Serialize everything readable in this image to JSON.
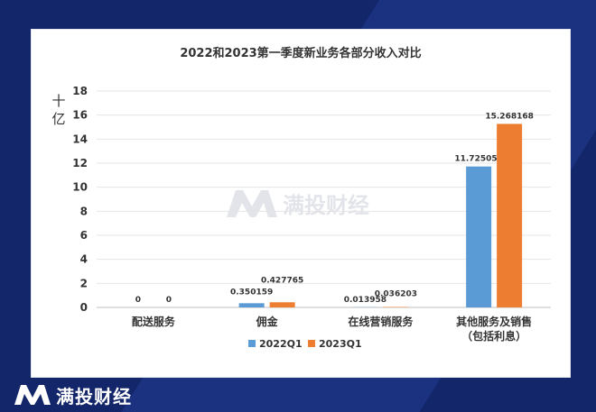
{
  "brand": {
    "name": "满投财经"
  },
  "chart_data": {
    "type": "bar",
    "title": "2022和2023第一季度新业务各部分收入对比",
    "ylabel": "十亿",
    "xlabel": "",
    "ylim": [
      0,
      18
    ],
    "yticks": [
      0,
      2,
      4,
      6,
      8,
      10,
      12,
      14,
      16,
      18
    ],
    "categories": [
      [
        "配送服务"
      ],
      [
        "佣金"
      ],
      [
        "在线营销服务"
      ],
      [
        "其他服务及销售",
        "（包括利息）"
      ]
    ],
    "series": [
      {
        "name": "2022Q1",
        "color": "#5b9bd5",
        "values": [
          0,
          0.350159,
          0.013958,
          11.725051
        ],
        "labels": [
          "0",
          "0.350159",
          "0.013958",
          "11.725051"
        ]
      },
      {
        "name": "2023Q1",
        "color": "#ed7d31",
        "values": [
          0,
          0.427765,
          0.036203,
          15.268168
        ],
        "labels": [
          "0",
          "0.427765",
          "0.036203",
          "15.268168"
        ]
      }
    ],
    "legend": "bottom",
    "grid": true
  }
}
